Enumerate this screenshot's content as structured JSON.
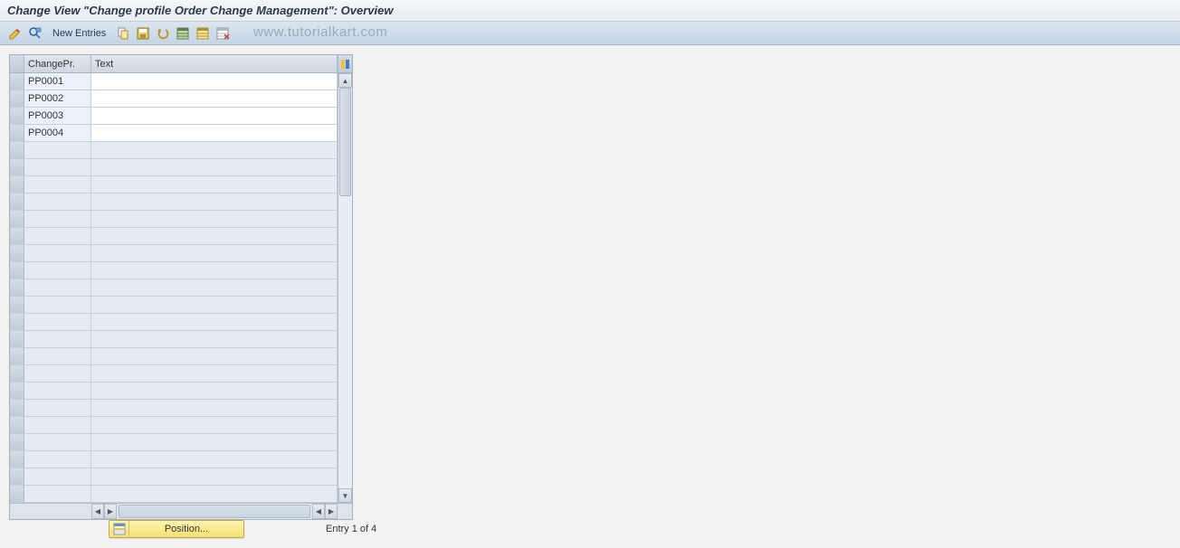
{
  "title": "Change View \"Change profile Order Change Management\": Overview",
  "toolbar": {
    "new_entries_label": "New Entries"
  },
  "watermark": "www.tutorialkart.com",
  "table": {
    "columns": {
      "changepr": "ChangePr.",
      "text": "Text"
    },
    "rows": [
      {
        "changepr": "PP0001",
        "text": ""
      },
      {
        "changepr": "PP0002",
        "text": ""
      },
      {
        "changepr": "PP0003",
        "text": ""
      },
      {
        "changepr": "PP0004",
        "text": ""
      }
    ],
    "empty_rows": 21
  },
  "footer": {
    "position_label": "Position...",
    "entry_text": "Entry 1 of 4"
  },
  "colors": {
    "titlebar_bg_top": "#f5f7fa",
    "titlebar_bg_bottom": "#e8edf2",
    "toolbar_bg_top": "#dae5ef",
    "toolbar_bg_bottom": "#c5d5e5",
    "content_bg": "#f2f2f2",
    "table_border": "#a0b0c0",
    "header_bg_top": "#e0e7ee",
    "header_bg_bottom": "#cfd8e2",
    "row_sel_bg_top": "#d5dde5",
    "row_sel_bg_bottom": "#c0ccd8",
    "cell_white": "#ffffff",
    "cell_empty": "#e4ebf2",
    "position_btn_top": "#fff5b0",
    "position_btn_bottom": "#f5e070",
    "watermark_color": "#99aabb"
  }
}
